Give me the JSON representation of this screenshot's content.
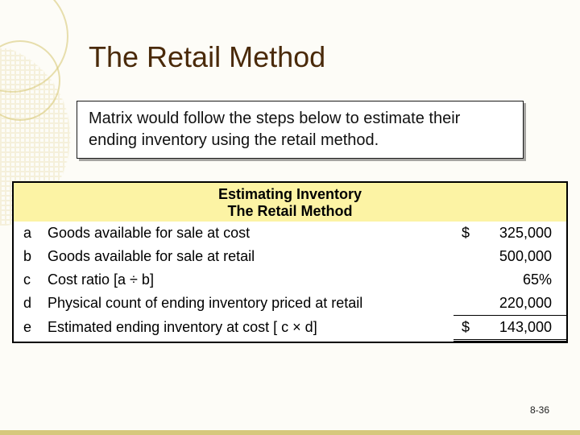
{
  "title": "The Retail Method",
  "intro": "Matrix would follow the steps below to estimate their ending inventory using the retail method.",
  "table": {
    "heading_line1": "Estimating Inventory",
    "heading_line2": "The Retail Method",
    "heading_bg": "#fcf3a4",
    "rows": [
      {
        "letter": "a",
        "desc": "Goods available for sale at cost",
        "currency": "$",
        "value": "325,000"
      },
      {
        "letter": "b",
        "desc": "Goods available for sale at retail",
        "currency": "",
        "value": "500,000"
      },
      {
        "letter": "c",
        "desc": "Cost ratio [a ÷ b]",
        "currency": "",
        "value": "65%"
      },
      {
        "letter": "d",
        "desc": "Physical count of ending inventory priced at retail",
        "currency": "",
        "value": "220,000"
      },
      {
        "letter": "e",
        "desc": "Estimated ending inventory at cost [ c × d]",
        "currency": "$",
        "value": "143,000"
      }
    ]
  },
  "page_number": "8-36",
  "colors": {
    "slide_bg": "#fdfcf7",
    "title_color": "#4a2a0a",
    "accent": "#d6c87c"
  }
}
